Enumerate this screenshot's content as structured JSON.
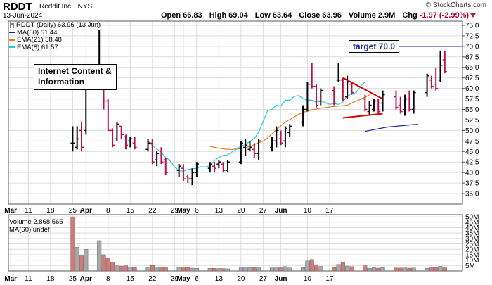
{
  "header": {
    "ticker": "RDDT",
    "company": "Reddit Inc.",
    "exchange": "NYSE",
    "date": "13-Jun-2024",
    "copyright": "© StockCharts.com",
    "open_label": "Open",
    "open": "66.83",
    "high_label": "High",
    "high": "69.04",
    "low_label": "Low",
    "low": "63.64",
    "close_label": "Close",
    "close": "63.96",
    "volume_label": "Volume",
    "volume": "2.9M",
    "chg_label": "Chg",
    "chg": "-1.97 (-2.99%)"
  },
  "legend": {
    "price": "RDDT (Daily) 63.96 (13 Jun)",
    "ma50": "MA(50) 51.44",
    "ema21": "EMA(21) 58.48",
    "ema8": "EMA(8) 61.57"
  },
  "volume_legend": {
    "volume": "Volume 2,868,565",
    "ma60": "MA(60) undef"
  },
  "annotations": {
    "industry_line1": "Internet Content &",
    "industry_line2": "Information",
    "target": "target 70.0"
  },
  "colors": {
    "up": "#000000",
    "down": "#c0104a",
    "ma50": "#1a1aa0",
    "ema21": "#e87818",
    "ema8": "#28c8d8",
    "target_line": "#1a2a9a",
    "pattern": "#e00000",
    "volume_down": "#d07a7a",
    "volume_up": "#a8a8a8",
    "grid": "#dcdcdc"
  },
  "chart_data": [
    {
      "type": "ohlc",
      "title": "RDDT Reddit Inc. NYSE",
      "ylim": [
        32.5,
        76
      ],
      "y_ticks": [
        35.0,
        37.5,
        40.0,
        42.5,
        45.0,
        47.5,
        50.0,
        52.5,
        55.0,
        57.5,
        60.0,
        62.5,
        65.0,
        67.5,
        70.0,
        72.5,
        75.0
      ],
      "x_labels": [
        "Mar",
        "11",
        "18",
        "25",
        "Apr",
        "8",
        "15",
        "22",
        "29",
        "May",
        "6",
        "13",
        "20",
        "27",
        "Jun",
        "10",
        "17"
      ],
      "x_label_days": [
        -17,
        -13,
        -8,
        -3,
        0,
        5,
        10,
        15,
        20,
        22,
        25,
        30,
        35,
        40,
        44,
        50,
        55
      ],
      "bar_days": [
        -3,
        -2,
        -1,
        0,
        3,
        4,
        5,
        6,
        7,
        8,
        9,
        10,
        11,
        14,
        15,
        16,
        17,
        18,
        21,
        22,
        23,
        24,
        25,
        28,
        29,
        30,
        31,
        32,
        35,
        36,
        37,
        38,
        39,
        42,
        43,
        44,
        45,
        46,
        49,
        50,
        51,
        52,
        53,
        56,
        57,
        58,
        59,
        60,
        63,
        64,
        65,
        66,
        67,
        70,
        71,
        72,
        73,
        74,
        77,
        78,
        79,
        80,
        81
      ],
      "bars": [
        [
          47.0,
          51.0,
          45.0,
          47.0
        ],
        [
          46.0,
          51.0,
          45.5,
          48.0
        ],
        [
          50.0,
          52.0,
          45.0,
          46.0
        ],
        [
          50.0,
          63.0,
          49.0,
          61.0
        ],
        [
          62.0,
          74.0,
          60.0,
          62.0
        ],
        [
          61.0,
          62.5,
          55.0,
          57.0
        ],
        [
          57.0,
          57.5,
          50.0,
          50.0
        ],
        [
          50.0,
          50.5,
          46.0,
          46.5
        ],
        [
          48.0,
          52.0,
          47.5,
          51.5
        ],
        [
          51.0,
          51.0,
          48.0,
          49.0
        ],
        [
          48.5,
          49.0,
          45.5,
          46.5
        ],
        [
          47.5,
          48.5,
          46.0,
          48.0
        ],
        [
          47.0,
          48.5,
          45.5,
          46.0
        ],
        [
          45.5,
          48.0,
          45.0,
          47.0
        ],
        [
          47.0,
          48.0,
          42.0,
          42.5
        ],
        [
          43.0,
          45.0,
          41.5,
          44.5
        ],
        [
          44.0,
          46.0,
          42.0,
          42.5
        ],
        [
          43.0,
          43.5,
          39.5,
          40.0
        ],
        [
          40.5,
          42.0,
          39.0,
          41.5
        ],
        [
          41.0,
          42.0,
          38.0,
          38.5
        ],
        [
          39.0,
          39.5,
          37.5,
          38.5
        ],
        [
          38.5,
          41.0,
          37.0,
          40.0
        ],
        [
          40.0,
          42.5,
          39.0,
          42.0
        ],
        [
          41.0,
          42.5,
          40.0,
          42.0
        ],
        [
          41.5,
          42.5,
          40.0,
          41.0
        ],
        [
          42.0,
          43.0,
          41.0,
          42.5
        ],
        [
          42.0,
          42.5,
          40.0,
          40.5
        ],
        [
          40.5,
          43.0,
          40.0,
          42.5
        ],
        [
          42.5,
          47.5,
          42.0,
          47.0
        ],
        [
          46.0,
          48.0,
          44.0,
          46.5
        ],
        [
          45.5,
          47.5,
          45.0,
          46.0
        ],
        [
          45.5,
          47.0,
          43.5,
          44.5
        ],
        [
          44.5,
          48.0,
          43.0,
          47.5
        ],
        [
          46.0,
          48.5,
          45.0,
          47.5
        ],
        [
          47.5,
          51.0,
          46.0,
          50.0
        ],
        [
          48.0,
          50.0,
          46.5,
          47.0
        ],
        [
          47.5,
          51.0,
          46.0,
          50.5
        ],
        [
          49.5,
          51.5,
          48.5,
          51.0
        ],
        [
          52.0,
          56.0,
          51.0,
          55.0
        ],
        [
          55.0,
          61.5,
          54.5,
          61.0
        ],
        [
          61.0,
          66.0,
          60.0,
          60.5
        ],
        [
          60.5,
          61.0,
          55.5,
          56.0
        ],
        [
          57.0,
          60.0,
          56.0,
          59.5
        ],
        [
          59.5,
          60.5,
          56.0,
          56.5
        ],
        [
          62.0,
          66.0,
          61.5,
          62.0
        ],
        [
          62.0,
          62.5,
          57.0,
          57.5
        ],
        [
          58.0,
          63.0,
          57.5,
          61.5
        ],
        [
          61.0,
          61.5,
          58.5,
          59.0
        ],
        [
          57.5,
          58.5,
          54.5,
          55.0
        ],
        [
          54.5,
          57.0,
          53.5,
          56.0
        ],
        [
          55.0,
          57.5,
          54.5,
          57.0
        ],
        [
          57.0,
          57.5,
          54.0,
          54.5
        ],
        [
          56.5,
          59.5,
          54.5,
          58.5
        ],
        [
          58.0,
          59.5,
          55.0,
          55.5
        ],
        [
          56.0,
          58.0,
          54.0,
          54.5
        ],
        [
          55.0,
          58.5,
          53.5,
          57.5
        ],
        [
          57.5,
          59.5,
          54.5,
          55.0
        ],
        [
          55.0,
          59.5,
          54.0,
          59.0
        ],
        [
          59.0,
          63.5,
          58.0,
          63.0
        ],
        [
          62.0,
          63.0,
          60.0,
          60.5
        ],
        [
          61.0,
          65.0,
          59.5,
          60.0
        ],
        [
          62.0,
          69.0,
          61.5,
          65.5
        ],
        [
          66.8,
          69.0,
          63.6,
          64.0
        ]
      ],
      "ma50": {
        "from_day": 63,
        "values": [
          49.8,
          50.0,
          50.2,
          50.4,
          50.6,
          50.8,
          50.9,
          51.0,
          51.1,
          51.2,
          51.3,
          51.4,
          51.44
        ]
      },
      "ema21": {
        "from_day": 28,
        "values": [
          46.2,
          46.0,
          45.8,
          45.6,
          45.5,
          45.5,
          45.6,
          45.7,
          45.9,
          46.2,
          46.6,
          47.1,
          47.5,
          48.2,
          49.2,
          50.2,
          51.1,
          52.0,
          52.6,
          53.2,
          53.8,
          54.3,
          54.6,
          54.9,
          55.1,
          55.3,
          55.4,
          55.6,
          55.7,
          55.8,
          55.9,
          56.0,
          56.5,
          57.0,
          57.4,
          57.9,
          58.48
        ]
      },
      "ema8": {
        "from_day": 14,
        "values": [
          47.5,
          46.4,
          45.6,
          44.8,
          43.6,
          42.8,
          41.3,
          40.5,
          40.3,
          40.7,
          40.9,
          41.0,
          41.4,
          41.3,
          41.6,
          42.8,
          43.6,
          44.1,
          44.2,
          44.9,
          45.5,
          46.4,
          46.6,
          47.4,
          48.1,
          49.6,
          52.1,
          54.7,
          55.0,
          56.0,
          55.8,
          57.2,
          57.2,
          58.1,
          58.3,
          57.6,
          57.2,
          57.2,
          56.7,
          57.1,
          56.6,
          56.2,
          56.4,
          56.2,
          56.8,
          58.2,
          58.7,
          59.0,
          60.5,
          61.57
        ]
      },
      "target_line": {
        "value": 70.0,
        "from_day": 66,
        "label": "target 70.0"
      },
      "pattern_lines": [
        {
          "from": [
            58,
            62.5
          ],
          "to": [
            67,
            57.5
          ]
        },
        {
          "from": [
            58,
            53.0
          ],
          "to": [
            67,
            54.0
          ]
        }
      ]
    },
    {
      "type": "bar",
      "title": "Volume",
      "ylim": [
        0,
        52000000
      ],
      "y_tick_labels": [
        "5M",
        "10M",
        "15M",
        "20M",
        "25M",
        "30M",
        "35M",
        "40M",
        "45M",
        "50M"
      ],
      "y_tick_values": [
        5000000,
        10000000,
        15000000,
        20000000,
        25000000,
        30000000,
        35000000,
        40000000,
        45000000,
        50000000
      ],
      "values": [
        50000000,
        22000000,
        14000000,
        20000000,
        28000000,
        15000000,
        12000000,
        8000000,
        5500000,
        4500000,
        4800000,
        3800000,
        3200000,
        3700000,
        5000000,
        3500000,
        3800000,
        3400000,
        3300000,
        3600000,
        3000000,
        2600000,
        2400000,
        2400000,
        2500000,
        2300000,
        2200000,
        2000000,
        3500000,
        3700000,
        3200000,
        3000000,
        3400000,
        2800000,
        3500000,
        2900000,
        4000000,
        2800000,
        3100000,
        9200000,
        10500000,
        5800000,
        4200000,
        3300000,
        6000000,
        7800000,
        4500000,
        4000000,
        4800000,
        2500000,
        3000000,
        2600000,
        3100000,
        2800000,
        2700000,
        2800000,
        2600000,
        2700000,
        2500000,
        3400000,
        3000000,
        4300000,
        2900000
      ],
      "up_down": [
        "d",
        "u",
        "d",
        "u",
        "u",
        "d",
        "d",
        "d",
        "u",
        "d",
        "d",
        "u",
        "d",
        "u",
        "d",
        "u",
        "d",
        "d",
        "u",
        "d",
        "d",
        "u",
        "u",
        "u",
        "d",
        "u",
        "d",
        "u",
        "u",
        "u",
        "u",
        "d",
        "u",
        "u",
        "u",
        "d",
        "u",
        "u",
        "u",
        "u",
        "d",
        "d",
        "u",
        "d",
        "u",
        "d",
        "u",
        "d",
        "d",
        "u",
        "u",
        "d",
        "u",
        "d",
        "d",
        "u",
        "d",
        "u",
        "u",
        "d",
        "d",
        "u",
        "d"
      ]
    }
  ]
}
